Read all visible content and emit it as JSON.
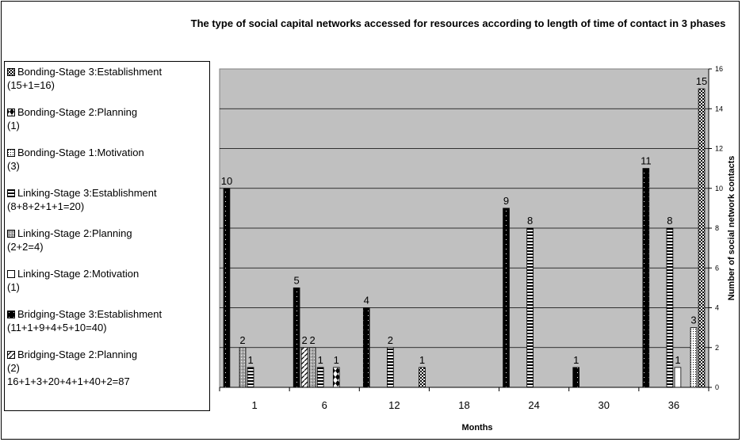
{
  "chart_data": {
    "type": "bar",
    "title": "The type of social capital networks accessed for resources according to length of time of contact in 3 phases",
    "xlabel": "Months",
    "ylabel": "Number of social network contacts",
    "ylim": [
      0,
      16
    ],
    "yticks": [
      0,
      2,
      4,
      6,
      8,
      10,
      12,
      14,
      16
    ],
    "categories": [
      "1",
      "6",
      "12",
      "18",
      "24",
      "30",
      "36"
    ],
    "series": [
      {
        "name": "Bridging-Stage 3:Establishment",
        "detail": "(11+1+9+4+5+10=40)",
        "color": "#000000",
        "pattern": "dots-on-black",
        "values": [
          10,
          5,
          4,
          null,
          9,
          1,
          11
        ]
      },
      {
        "name": "Bridging-Stage 2:Planning",
        "detail": "(2)",
        "color": "#ffffff",
        "pattern": "diagonal",
        "values": [
          null,
          2,
          null,
          null,
          null,
          null,
          null
        ]
      },
      {
        "name": "Linking-Stage 2:Planning",
        "detail": "(2+2=4)",
        "color": "#a8a8a8",
        "pattern": "speckle",
        "values": [
          2,
          2,
          null,
          null,
          null,
          null,
          null
        ]
      },
      {
        "name": "Linking-Stage 3:Establishment",
        "detail": "(8+8+2+1+1=20)",
        "color": "#000000",
        "pattern": "horizontal-stripes",
        "values": [
          1,
          1,
          2,
          null,
          8,
          null,
          8
        ]
      },
      {
        "name": "Linking-Stage 2:Motivation",
        "detail": "(1)",
        "color": "#ffffff",
        "pattern": "plain",
        "values": [
          null,
          null,
          null,
          null,
          null,
          null,
          1
        ]
      },
      {
        "name": "Bonding-Stage 2:Planning",
        "detail": "(1)",
        "color": "#ffffff",
        "pattern": "bowtie",
        "values": [
          null,
          1,
          null,
          null,
          null,
          null,
          null
        ]
      },
      {
        "name": "Bonding-Stage 1:Motivation",
        "detail": "(3)",
        "color": "#ffffff",
        "pattern": "fine-dots",
        "values": [
          null,
          null,
          null,
          null,
          null,
          null,
          3
        ]
      },
      {
        "name": "Bonding-Stage 3:Establishment",
        "detail": "(15+1=16)",
        "color": "#000000",
        "pattern": "checker",
        "values": [
          null,
          null,
          1,
          null,
          null,
          null,
          15
        ]
      }
    ],
    "legend_order": [
      "Bonding-Stage 3:Establishment",
      "Bonding-Stage 2:Planning",
      "Bonding-Stage 1:Motivation",
      "Linking-Stage 3:Establishment",
      "Linking-Stage 2:Planning",
      "Linking-Stage 2:Motivation",
      "Bridging-Stage 3:Establishment",
      "Bridging-Stage 2:Planning"
    ],
    "legend_placement": "left",
    "legend_total": "16+1+3+20+4+1+40+2=87",
    "plot_background": "#c0c0c0",
    "grid": true
  }
}
